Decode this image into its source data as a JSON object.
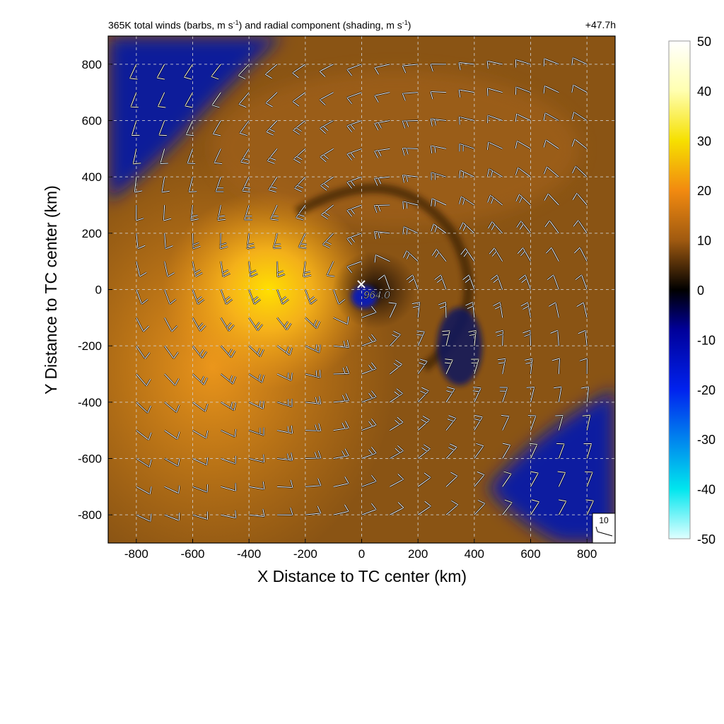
{
  "chart_data": {
    "type": "heatmap",
    "title_parts": {
      "pre": "365K total winds (barbs, m s",
      "sup1": "-1",
      "mid": ") and radial component (shading, m s",
      "sup2": "-1",
      "post": ")"
    },
    "time_label": "+47.7h",
    "xlabel": "X Distance to TC center (km)",
    "ylabel": "Y Distance to TC center (km)",
    "xlim": [
      -900,
      900
    ],
    "ylim": [
      -900,
      900
    ],
    "xticks": [
      -800,
      -600,
      -400,
      -200,
      0,
      200,
      400,
      600,
      800
    ],
    "yticks": [
      -800,
      -600,
      -400,
      -200,
      0,
      200,
      400,
      600,
      800
    ],
    "grid": true,
    "center_marker": {
      "x": 0,
      "y": 0,
      "label": "964.0"
    },
    "reference_barb": {
      "label": "10"
    },
    "colorbar": {
      "range": [
        -50,
        50
      ],
      "ticks": [
        50,
        40,
        30,
        20,
        10,
        0,
        -10,
        -20,
        -30,
        -40,
        -50
      ],
      "colors": {
        "min": "#e0ffff",
        "-40": "#00e6ee",
        "-20": "#0022ee",
        "-8": "#00009a",
        "0": "#000000",
        "10": "#a05a10",
        "20": "#f28a10",
        "30": "#f6e000",
        "40": "#ffffb0",
        "max": "#ffffff"
      }
    },
    "field_description": {
      "vortex_center_km": [
        0,
        0
      ],
      "inflow_regions": [
        "north-west corner",
        "south-east corner",
        "eye"
      ],
      "outflow_max_km": [
        -250,
        0
      ]
    }
  }
}
